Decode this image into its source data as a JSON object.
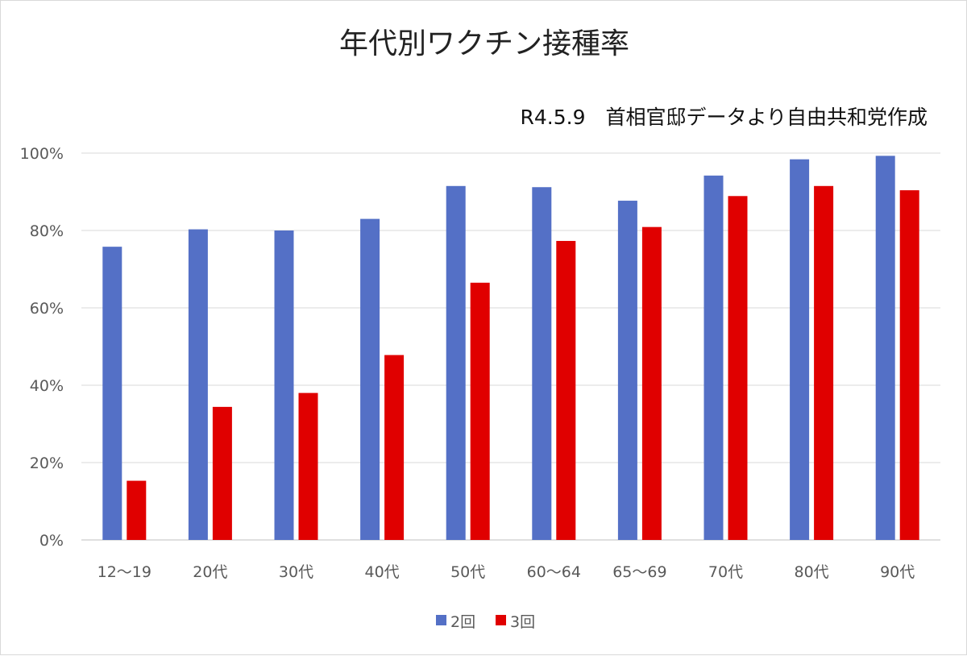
{
  "chart_data": {
    "type": "bar",
    "title": "年代別ワクチン接種率",
    "subtitle": "R4.5.9　首相官邸データより自由共和党作成",
    "categories": [
      "12～19",
      "20代",
      "30代",
      "40代",
      "50代",
      "60～64",
      "65～69",
      "70代",
      "80代",
      "90代"
    ],
    "series": [
      {
        "name": "2回",
        "color": "#5470c6",
        "values": [
          75.8,
          80.3,
          80.0,
          83.0,
          91.5,
          91.2,
          87.7,
          94.2,
          98.4,
          99.3
        ]
      },
      {
        "name": "3回",
        "color": "#e00000",
        "values": [
          15.3,
          34.4,
          38.0,
          47.8,
          66.5,
          77.3,
          80.9,
          88.9,
          91.5,
          90.4
        ]
      }
    ],
    "ylim": [
      0,
      100
    ],
    "yticks": [
      "0%",
      "20%",
      "40%",
      "60%",
      "80%",
      "100%"
    ],
    "grid": true,
    "legend_position": "bottom"
  }
}
